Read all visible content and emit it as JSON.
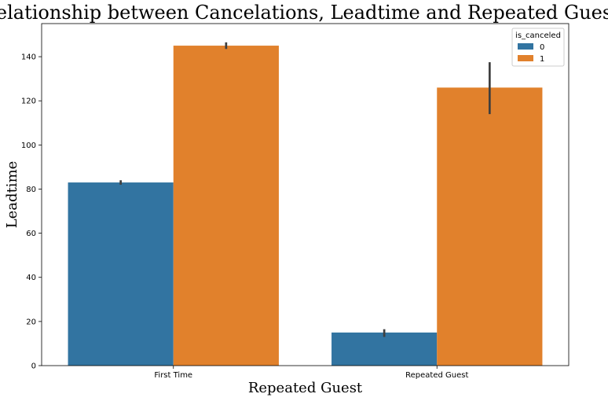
{
  "chart_data": {
    "type": "bar",
    "title": "Relationship between Cancelations, Leadtime and Repeated Guests",
    "xlabel": "Repeated Guest",
    "ylabel": "Leadtime",
    "categories": [
      "First Time",
      "Repeated Guest"
    ],
    "ylim": [
      0,
      155
    ],
    "yticks": [
      0,
      20,
      40,
      60,
      80,
      100,
      120,
      140
    ],
    "legend": {
      "title": "is_canceled",
      "placement": "top-right"
    },
    "series": [
      {
        "name": "0",
        "color": "#3274a1",
        "values": [
          83,
          15
        ],
        "error_low": [
          82,
          13
        ],
        "error_high": [
          84,
          16.5
        ]
      },
      {
        "name": "1",
        "color": "#e1812c",
        "values": [
          145,
          126
        ],
        "error_low": [
          143.5,
          114
        ],
        "error_high": [
          146.5,
          137.5
        ]
      }
    ],
    "grid": false
  }
}
